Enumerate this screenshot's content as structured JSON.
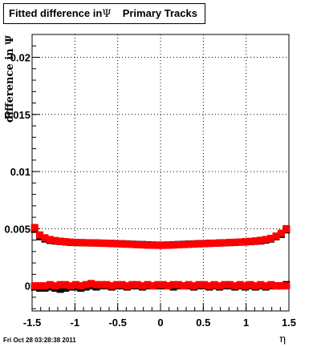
{
  "title": {
    "main": "Fitted difference in",
    "psi": "Ψ",
    "sub": "Primary Tracks"
  },
  "footer": "Fri Oct 28 03:28:38 2011",
  "chart_data": {
    "type": "scatter",
    "title": "Fitted difference in Ψ   Primary Tracks",
    "xlabel": "η",
    "ylabel": "difference in Ψ",
    "xlim": [
      -1.5,
      1.5
    ],
    "ylim": [
      -0.0022,
      0.022
    ],
    "grid": true,
    "x_ticks": [
      "-1.5",
      "-1",
      "-0.5",
      "0",
      "0.5",
      "1",
      "1.5"
    ],
    "x_tick_values": [
      -1.5,
      -1,
      -0.5,
      0,
      0.5,
      1,
      1.5
    ],
    "y_ticks": [
      "0",
      "0.005",
      "0.01",
      "0.015",
      "0.02"
    ],
    "y_tick_values": [
      0,
      0.005,
      0.01,
      0.015,
      0.02
    ],
    "x": [
      -1.47,
      -1.41,
      -1.35,
      -1.29,
      -1.23,
      -1.17,
      -1.11,
      -1.05,
      -0.99,
      -0.93,
      -0.87,
      -0.81,
      -0.75,
      -0.69,
      -0.63,
      -0.57,
      -0.51,
      -0.45,
      -0.39,
      -0.33,
      -0.27,
      -0.21,
      -0.15,
      -0.09,
      -0.03,
      0.03,
      0.09,
      0.15,
      0.21,
      0.27,
      0.33,
      0.39,
      0.45,
      0.51,
      0.57,
      0.63,
      0.69,
      0.75,
      0.81,
      0.87,
      0.93,
      0.99,
      1.05,
      1.11,
      1.17,
      1.23,
      1.29,
      1.35,
      1.41,
      1.47
    ],
    "series": [
      {
        "color": "#000000",
        "marker": "square",
        "values": [
          0.00495,
          0.0043,
          0.0041,
          0.00398,
          0.00392,
          0.00388,
          0.00384,
          0.0038,
          0.00379,
          0.00377,
          0.00376,
          0.00375,
          0.00375,
          0.00373,
          0.00372,
          0.00371,
          0.00369,
          0.00368,
          0.00366,
          0.00364,
          0.00362,
          0.00361,
          0.00359,
          0.00357,
          0.00356,
          0.00356,
          0.00357,
          0.00359,
          0.00361,
          0.00363,
          0.00365,
          0.00367,
          0.00369,
          0.0037,
          0.00372,
          0.00373,
          0.00375,
          0.00376,
          0.00378,
          0.0038,
          0.00382,
          0.00384,
          0.00387,
          0.0039,
          0.00393,
          0.004,
          0.0041,
          0.0043,
          0.0045,
          0.0049
        ]
      },
      {
        "color": "#ff0000",
        "marker": "square",
        "values": [
          0.0051,
          0.00445,
          0.0042,
          0.00405,
          0.00396,
          0.0039,
          0.00386,
          0.00382,
          0.0038,
          0.00378,
          0.00377,
          0.00376,
          0.00375,
          0.00374,
          0.00372,
          0.0037,
          0.00368,
          0.00366,
          0.00364,
          0.00362,
          0.0036,
          0.00358,
          0.00356,
          0.00355,
          0.00354,
          0.00354,
          0.00355,
          0.00357,
          0.00359,
          0.00361,
          0.00363,
          0.00365,
          0.00367,
          0.00369,
          0.00371,
          0.00373,
          0.00375,
          0.00377,
          0.00379,
          0.00381,
          0.00383,
          0.00386,
          0.00389,
          0.00393,
          0.00398,
          0.00405,
          0.00415,
          0.00435,
          0.0046,
          0.005
        ]
      },
      {
        "color": "#000000",
        "marker": "square",
        "values": [
          -0.0001,
          -0.0002,
          -0.0002,
          -0.0001,
          -0.0002,
          -0.0003,
          -0.0002,
          -0.0001,
          -0.0001,
          -0.0002,
          -0.0001,
          0.0,
          -0.0001,
          0.0,
          0.0,
          -0.0001,
          0.0,
          0.0,
          -0.0001,
          0.0,
          0.0,
          -0.0001,
          0.0,
          0.0,
          0.0,
          0.0,
          0.0,
          -0.0001,
          0.0,
          0.0,
          0.0,
          -0.0001,
          0.0,
          0.0,
          -0.0001,
          0.0,
          -0.0001,
          0.0,
          0.0,
          -0.0001,
          0.0,
          -0.0001,
          0.0,
          -0.0001,
          0.0,
          -0.0001,
          0.0,
          0.0,
          0.0,
          0.0001
        ]
      },
      {
        "color": "#ff0000",
        "marker": "square",
        "values": [
          0.0,
          0.0,
          0.0,
          0.0001,
          0.0,
          0.0001,
          0.0001,
          0.0,
          0.0001,
          0.0,
          0.0001,
          0.0002,
          0.0001,
          0.0001,
          0.0001,
          0.0,
          0.0001,
          0.0001,
          0.0,
          0.0001,
          0.0001,
          0.0,
          0.0001,
          0.0,
          0.0001,
          0.0001,
          0.0,
          0.0001,
          0.0001,
          0.0,
          0.0001,
          0.0,
          0.0001,
          0.0001,
          0.0,
          0.0001,
          0.0,
          0.0001,
          0.0001,
          0.0,
          0.0001,
          0.0,
          0.0001,
          0.0,
          0.0001,
          0.0,
          0.0001,
          0.0,
          0.0,
          0.0
        ]
      }
    ]
  }
}
